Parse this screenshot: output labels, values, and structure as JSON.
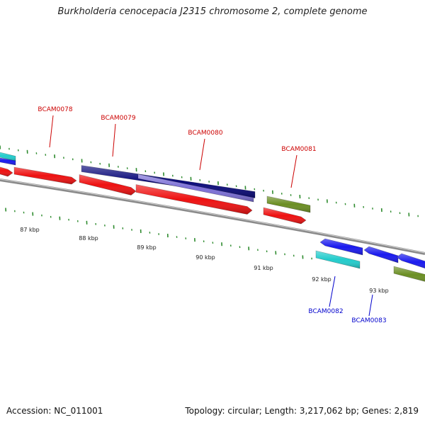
{
  "title": "Burkholderia cenocepacia J2315 chromosome 2, complete genome",
  "footer": {
    "accession": "Accession: NC_011001",
    "stats": "Topology: circular; Length: 3,217,062 bp; Genes: 2,819"
  },
  "colors": {
    "backbone": "#8a8a8a",
    "tick": "#2e8b2e",
    "forward_label": "#cc0000",
    "reverse_label": "#0000cc",
    "cds_red": "#ee1111",
    "navy": "#0a0a7a",
    "lavender": "#7b6fd6",
    "olive": "#6b8e23",
    "blue": "#1a1aee",
    "cyan": "#22cccc"
  },
  "kbp_labels": [
    "87 kbp",
    "88 kbp",
    "89 kbp",
    "90 kbp",
    "91 kbp",
    "92 kbp",
    "93 kbp"
  ],
  "gene_labels": [
    "BCAM0078",
    "BCAM0079",
    "BCAM0080",
    "BCAM0081",
    "BCAM0082",
    "BCAM0083"
  ]
}
